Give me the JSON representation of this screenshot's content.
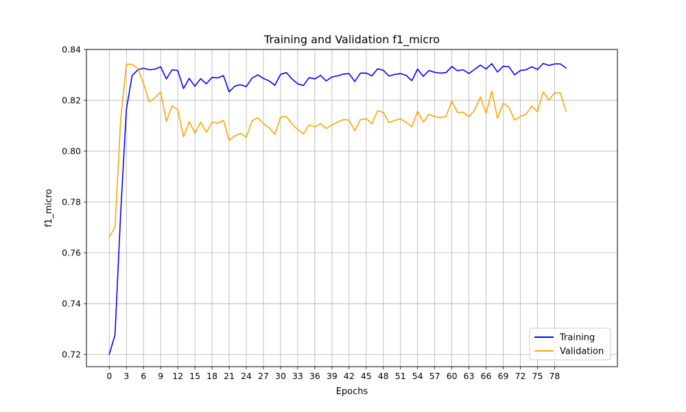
{
  "chart_data": {
    "type": "line",
    "title": "Training and Validation f1_micro",
    "xlabel": "Epochs",
    "ylabel": "f1_micro",
    "xlim": [
      -4,
      89
    ],
    "ylim": [
      0.7152,
      0.84
    ],
    "xticks": [
      0,
      3,
      6,
      9,
      12,
      15,
      18,
      21,
      24,
      27,
      30,
      33,
      36,
      39,
      42,
      45,
      48,
      51,
      54,
      57,
      60,
      63,
      66,
      69,
      72,
      75,
      78
    ],
    "yticks": [
      0.72,
      0.74,
      0.76,
      0.78,
      0.8,
      0.82,
      0.84
    ],
    "ytick_labels": [
      "0.72",
      "0.74",
      "0.76",
      "0.78",
      "0.80",
      "0.82",
      "0.84"
    ],
    "grid": true,
    "legend_position": "lower-right",
    "x": [
      0,
      1,
      2,
      3,
      4,
      5,
      6,
      7,
      8,
      9,
      10,
      11,
      12,
      13,
      14,
      15,
      16,
      17,
      18,
      19,
      20,
      21,
      22,
      23,
      24,
      25,
      26,
      27,
      28,
      29,
      30,
      31,
      32,
      33,
      34,
      35,
      36,
      37,
      38,
      39,
      40,
      41,
      42,
      43,
      44,
      45,
      46,
      47,
      48,
      49,
      50,
      51,
      52,
      53,
      54,
      55,
      56,
      57,
      58,
      59,
      60,
      61,
      62,
      63,
      64,
      65,
      66,
      67,
      68,
      69,
      70,
      71,
      72,
      73,
      74,
      75,
      76,
      77,
      78,
      79,
      80
    ],
    "series": [
      {
        "name": "Training",
        "color": "#0000ff",
        "values": [
          0.7201,
          0.7276,
          0.7758,
          0.8165,
          0.8297,
          0.832,
          0.8326,
          0.832,
          0.8322,
          0.8332,
          0.8284,
          0.832,
          0.8317,
          0.8246,
          0.8286,
          0.8255,
          0.8285,
          0.8265,
          0.829,
          0.8288,
          0.8297,
          0.8233,
          0.8256,
          0.8261,
          0.8254,
          0.8287,
          0.83,
          0.8286,
          0.8276,
          0.8259,
          0.8302,
          0.8309,
          0.8284,
          0.8265,
          0.8258,
          0.8289,
          0.8284,
          0.8298,
          0.8276,
          0.8292,
          0.8296,
          0.8303,
          0.8305,
          0.8274,
          0.8307,
          0.8307,
          0.8296,
          0.8324,
          0.8318,
          0.8295,
          0.8302,
          0.8305,
          0.8298,
          0.8277,
          0.8323,
          0.8294,
          0.8317,
          0.831,
          0.8307,
          0.8309,
          0.8333,
          0.8316,
          0.832,
          0.8305,
          0.8322,
          0.8338,
          0.8323,
          0.8344,
          0.8311,
          0.8334,
          0.8332,
          0.83,
          0.8317,
          0.832,
          0.8332,
          0.8321,
          0.8345,
          0.8337,
          0.8343,
          0.8343,
          0.8327
        ]
      },
      {
        "name": "Validation",
        "color": "#ffa500",
        "values": [
          0.7662,
          0.77,
          0.8128,
          0.8342,
          0.8341,
          0.8325,
          0.8265,
          0.8194,
          0.821,
          0.8233,
          0.8117,
          0.8178,
          0.8163,
          0.8056,
          0.8116,
          0.8071,
          0.8113,
          0.8074,
          0.8114,
          0.811,
          0.8121,
          0.8042,
          0.806,
          0.807,
          0.8054,
          0.8119,
          0.8131,
          0.8108,
          0.8092,
          0.8066,
          0.8133,
          0.8136,
          0.8107,
          0.8085,
          0.8068,
          0.8103,
          0.8095,
          0.8108,
          0.8089,
          0.8103,
          0.8114,
          0.8124,
          0.8122,
          0.808,
          0.8124,
          0.8128,
          0.8108,
          0.8159,
          0.8152,
          0.8112,
          0.8121,
          0.8127,
          0.8114,
          0.8095,
          0.8157,
          0.8114,
          0.8145,
          0.8136,
          0.8131,
          0.8137,
          0.8197,
          0.8152,
          0.8153,
          0.8135,
          0.8161,
          0.8213,
          0.8148,
          0.8236,
          0.8129,
          0.8189,
          0.8172,
          0.8122,
          0.8137,
          0.8145,
          0.8177,
          0.8155,
          0.8233,
          0.82,
          0.8229,
          0.8229,
          0.8157
        ]
      }
    ]
  }
}
